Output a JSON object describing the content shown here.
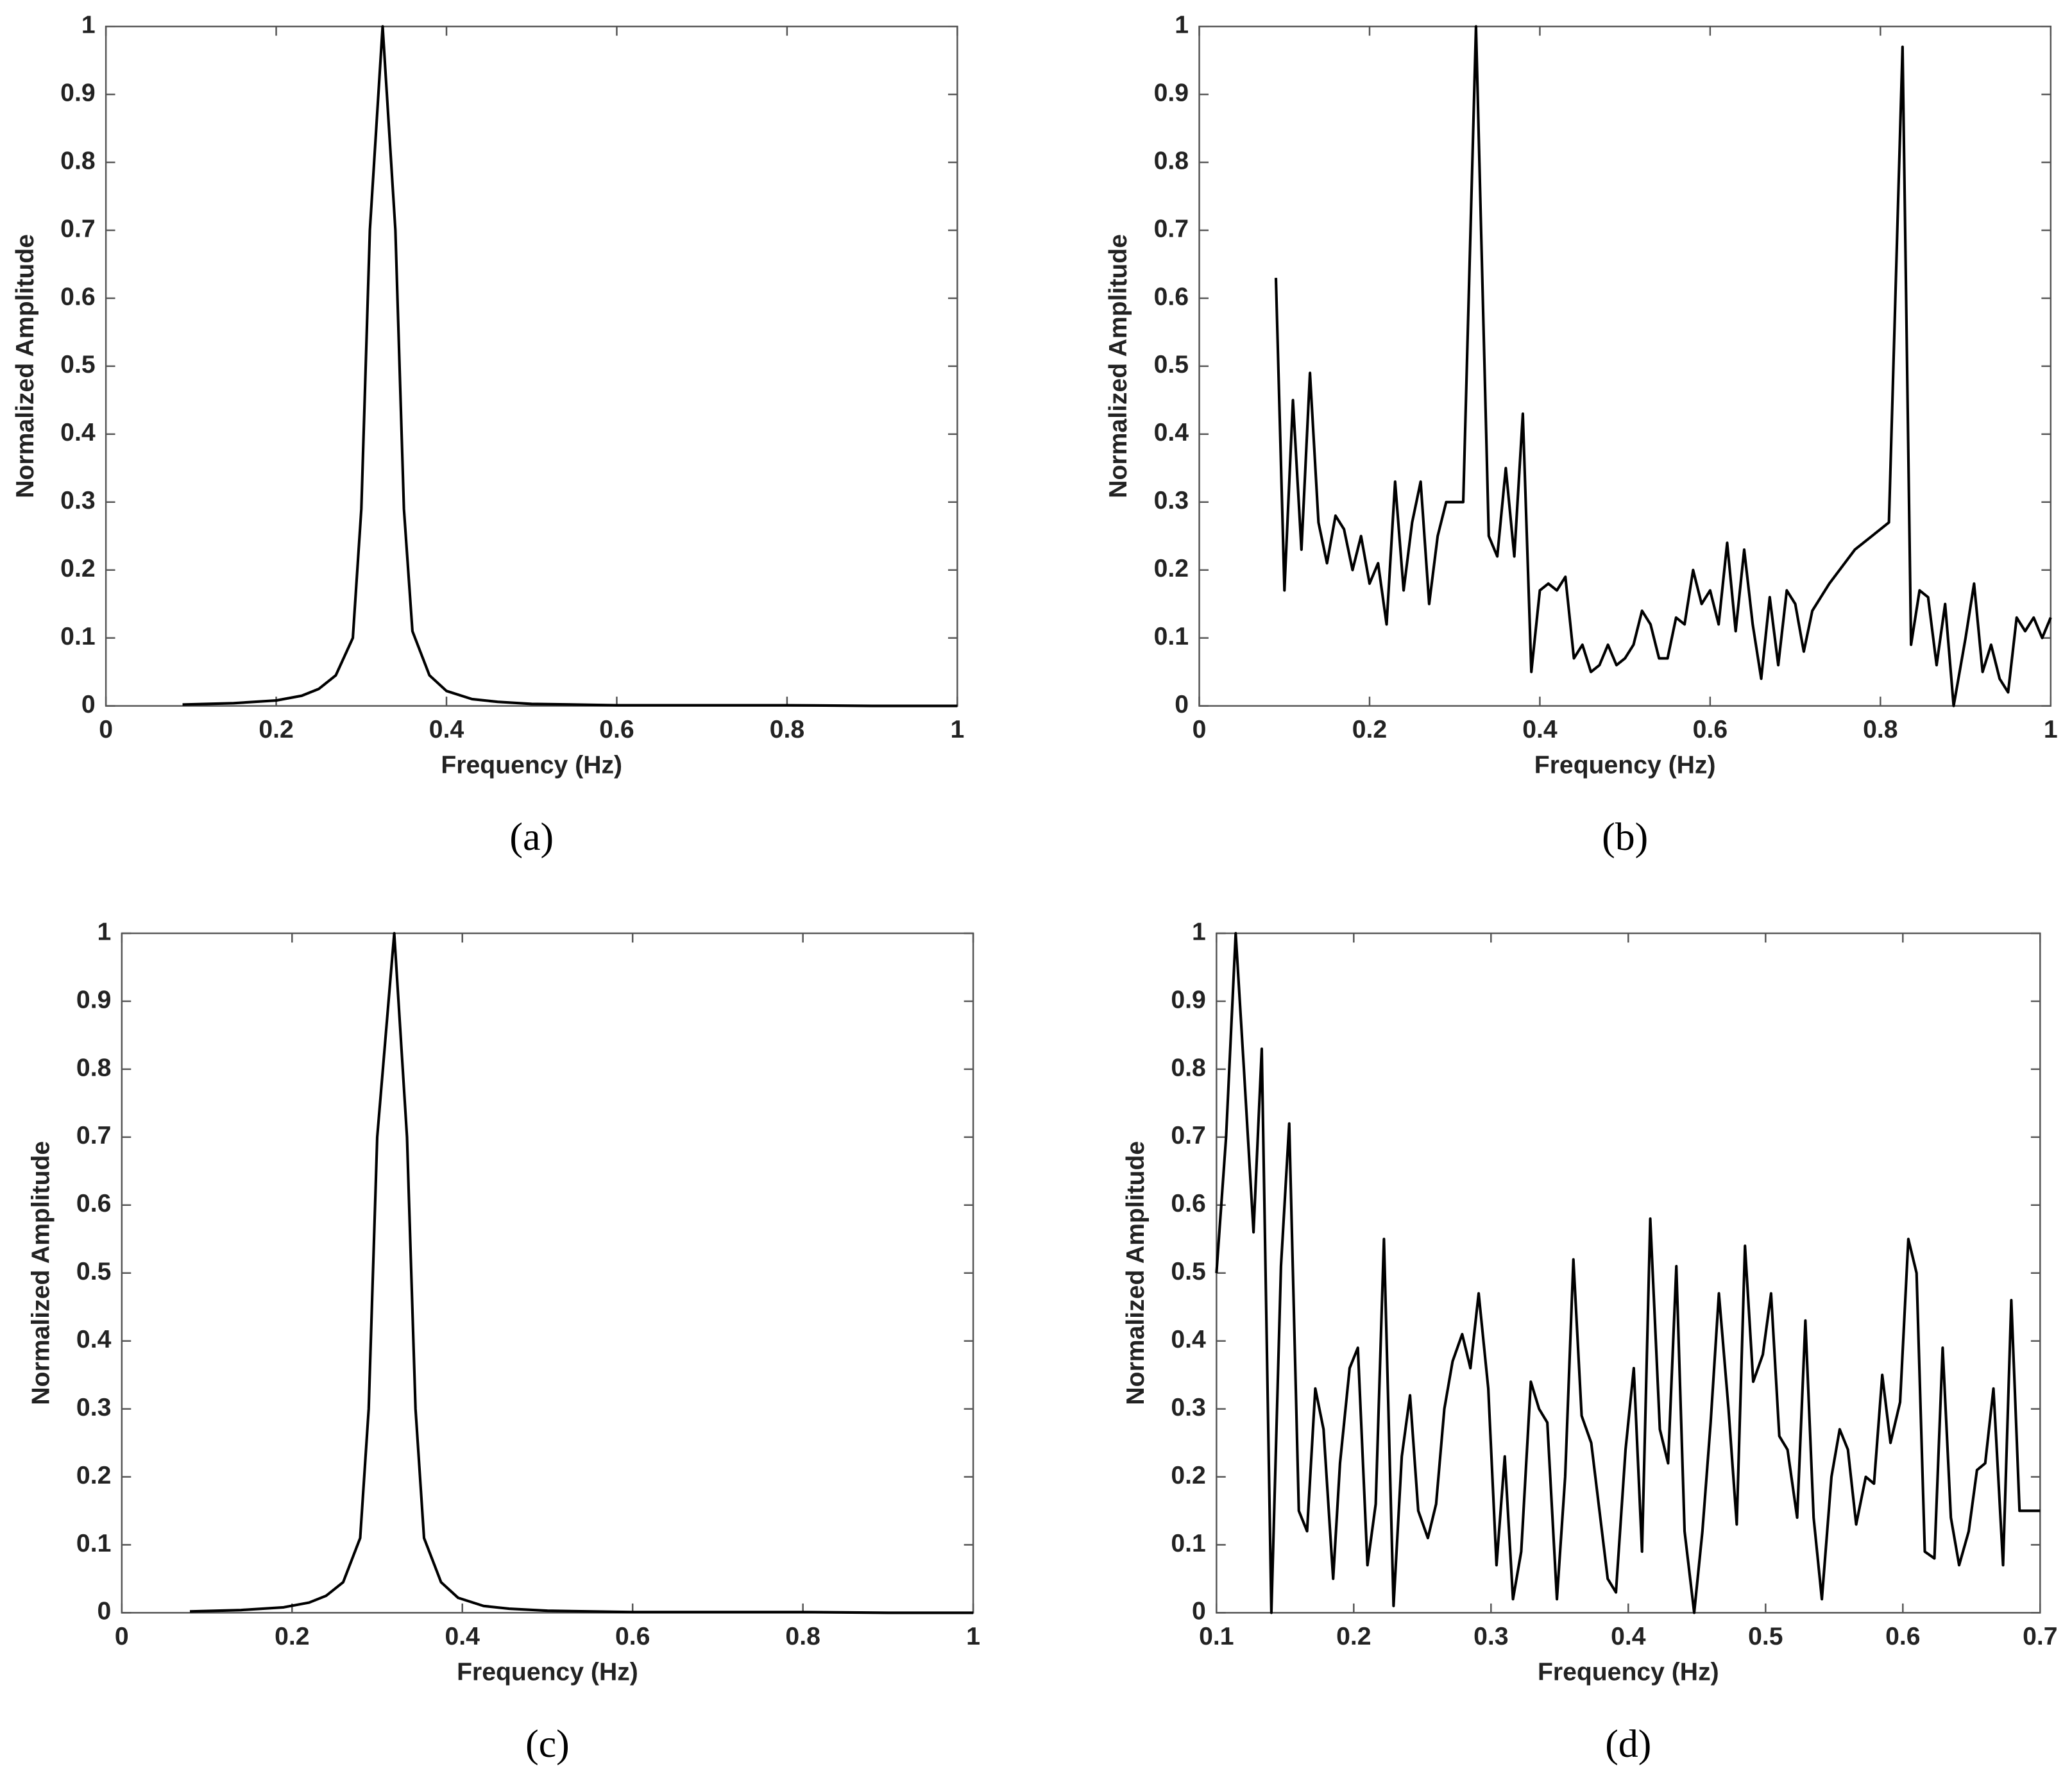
{
  "chart_data": [
    {
      "type": "line",
      "caption": "(a)",
      "xlabel": "Frequency (Hz)",
      "ylabel": "Normalized Amplitude",
      "color": "#000000",
      "x": [
        0.09,
        0.15,
        0.2,
        0.23,
        0.25,
        0.27,
        0.29,
        0.3,
        0.31,
        0.325,
        0.34,
        0.35,
        0.36,
        0.38,
        0.4,
        0.43,
        0.46,
        0.5,
        0.6,
        0.7,
        0.8,
        0.9,
        1.0
      ],
      "values": [
        0.002,
        0.004,
        0.008,
        0.015,
        0.025,
        0.045,
        0.1,
        0.29,
        0.7,
        1,
        0.7,
        0.29,
        0.11,
        0.045,
        0.022,
        0.01,
        0.006,
        0.003,
        0.001,
        0.001,
        0.001,
        0,
        0
      ],
      "xlim": [
        0,
        1
      ],
      "ylim": [
        0,
        1
      ],
      "xticks": [
        0,
        0.2,
        0.4,
        0.6,
        0.8,
        1
      ],
      "yticks": [
        0,
        0.1,
        0.2,
        0.3,
        0.4,
        0.5,
        0.6,
        0.7,
        0.8,
        0.9,
        1
      ]
    },
    {
      "type": "line",
      "caption": "(b)",
      "xlabel": "Frequency (Hz)",
      "ylabel": "Normalized Amplitude",
      "color": "#000000",
      "x": [
        0.09,
        0.1,
        0.11,
        0.12,
        0.13,
        0.14,
        0.15,
        0.16,
        0.17,
        0.18,
        0.19,
        0.2,
        0.21,
        0.22,
        0.23,
        0.24,
        0.25,
        0.26,
        0.27,
        0.28,
        0.29,
        0.31,
        0.325,
        0.34,
        0.35,
        0.36,
        0.37,
        0.38,
        0.39,
        0.4,
        0.41,
        0.42,
        0.43,
        0.44,
        0.45,
        0.46,
        0.47,
        0.48,
        0.49,
        0.5,
        0.51,
        0.52,
        0.53,
        0.54,
        0.55,
        0.56,
        0.57,
        0.58,
        0.59,
        0.6,
        0.61,
        0.62,
        0.63,
        0.64,
        0.65,
        0.66,
        0.67,
        0.68,
        0.69,
        0.7,
        0.71,
        0.72,
        0.74,
        0.77,
        0.81,
        0.826,
        0.836,
        0.846,
        0.856,
        0.866,
        0.876,
        0.886,
        0.9,
        0.91,
        0.92,
        0.93,
        0.94,
        0.95,
        0.96,
        0.97,
        0.98,
        0.99,
        1
      ],
      "values": [
        0.63,
        0.17,
        0.45,
        0.23,
        0.49,
        0.27,
        0.21,
        0.28,
        0.26,
        0.2,
        0.25,
        0.18,
        0.21,
        0.12,
        0.33,
        0.17,
        0.27,
        0.33,
        0.15,
        0.25,
        0.3,
        0.3,
        1,
        0.25,
        0.22,
        0.35,
        0.22,
        0.43,
        0.05,
        0.17,
        0.18,
        0.17,
        0.19,
        0.07,
        0.09,
        0.05,
        0.06,
        0.09,
        0.06,
        0.07,
        0.09,
        0.14,
        0.12,
        0.07,
        0.07,
        0.13,
        0.12,
        0.2,
        0.15,
        0.17,
        0.12,
        0.24,
        0.11,
        0.23,
        0.12,
        0.04,
        0.16,
        0.06,
        0.17,
        0.15,
        0.08,
        0.14,
        0.18,
        0.23,
        0.27,
        0.97,
        0.09,
        0.17,
        0.16,
        0.06,
        0.15,
        0,
        0.1,
        0.18,
        0.05,
        0.09,
        0.04,
        0.02,
        0.13,
        0.11,
        0.13,
        0.1,
        0.13
      ],
      "xlim": [
        0,
        1
      ],
      "ylim": [
        0,
        1
      ],
      "xticks": [
        0,
        0.2,
        0.4,
        0.6,
        0.8,
        1
      ],
      "yticks": [
        0,
        0.1,
        0.2,
        0.3,
        0.4,
        0.5,
        0.6,
        0.7,
        0.8,
        0.9,
        1
      ]
    },
    {
      "type": "line",
      "caption": "(c)",
      "xlabel": "Frequency (Hz)",
      "ylabel": "Normalized Amplitude",
      "color": "#000000",
      "x": [
        0.08,
        0.14,
        0.19,
        0.22,
        0.24,
        0.26,
        0.28,
        0.29,
        0.3,
        0.32,
        0.335,
        0.345,
        0.355,
        0.375,
        0.395,
        0.425,
        0.455,
        0.5,
        0.6,
        0.7,
        0.8,
        0.9,
        1.0
      ],
      "values": [
        0.002,
        0.004,
        0.008,
        0.015,
        0.025,
        0.045,
        0.11,
        0.3,
        0.7,
        1,
        0.7,
        0.3,
        0.11,
        0.045,
        0.022,
        0.01,
        0.006,
        0.003,
        0.001,
        0.001,
        0.001,
        0,
        0
      ],
      "xlim": [
        0,
        1
      ],
      "ylim": [
        0,
        1
      ],
      "xticks": [
        0,
        0.2,
        0.4,
        0.6,
        0.8,
        1
      ],
      "yticks": [
        0,
        0.1,
        0.2,
        0.3,
        0.4,
        0.5,
        0.6,
        0.7,
        0.8,
        0.9,
        1
      ]
    },
    {
      "type": "line",
      "caption": "(d)",
      "xlabel": "Frequency (Hz)",
      "ylabel": "Normalized Amplitude",
      "color": "#000000",
      "x": [
        0.1,
        0.107,
        0.114,
        0.12,
        0.127,
        0.133,
        0.14,
        0.147,
        0.153,
        0.16,
        0.166,
        0.172,
        0.178,
        0.185,
        0.19,
        0.197,
        0.203,
        0.21,
        0.216,
        0.222,
        0.229,
        0.235,
        0.241,
        0.247,
        0.254,
        0.26,
        0.266,
        0.272,
        0.279,
        0.285,
        0.291,
        0.298,
        0.304,
        0.31,
        0.316,
        0.322,
        0.329,
        0.335,
        0.341,
        0.348,
        0.354,
        0.36,
        0.366,
        0.373,
        0.379,
        0.385,
        0.391,
        0.398,
        0.404,
        0.41,
        0.416,
        0.423,
        0.429,
        0.435,
        0.441,
        0.448,
        0.454,
        0.46,
        0.466,
        0.473,
        0.479,
        0.485,
        0.491,
        0.498,
        0.504,
        0.51,
        0.516,
        0.523,
        0.529,
        0.535,
        0.541,
        0.548,
        0.554,
        0.56,
        0.566,
        0.573,
        0.579,
        0.585,
        0.591,
        0.598,
        0.604,
        0.61,
        0.616,
        0.623,
        0.629,
        0.635,
        0.641,
        0.648,
        0.654,
        0.66,
        0.666,
        0.673,
        0.679,
        0.685,
        0.7
      ],
      "values": [
        0.5,
        0.7,
        1,
        0.8,
        0.56,
        0.83,
        0,
        0.51,
        0.72,
        0.15,
        0.12,
        0.33,
        0.27,
        0.05,
        0.22,
        0.36,
        0.39,
        0.07,
        0.16,
        0.55,
        0.01,
        0.23,
        0.32,
        0.15,
        0.11,
        0.16,
        0.3,
        0.37,
        0.41,
        0.36,
        0.47,
        0.33,
        0.07,
        0.23,
        0.02,
        0.09,
        0.34,
        0.3,
        0.28,
        0.02,
        0.2,
        0.52,
        0.29,
        0.25,
        0.15,
        0.05,
        0.03,
        0.24,
        0.36,
        0.09,
        0.58,
        0.27,
        0.22,
        0.51,
        0.12,
        0,
        0.12,
        0.28,
        0.47,
        0.3,
        0.13,
        0.54,
        0.34,
        0.38,
        0.47,
        0.26,
        0.24,
        0.14,
        0.43,
        0.14,
        0.02,
        0.2,
        0.27,
        0.24,
        0.13,
        0.2,
        0.19,
        0.35,
        0.25,
        0.31,
        0.55,
        0.5,
        0.09,
        0.08,
        0.39,
        0.14,
        0.07,
        0.12,
        0.21,
        0.22,
        0.33,
        0.07,
        0.46,
        0.15,
        0.15
      ],
      "xlim": [
        0.1,
        0.7
      ],
      "ylim": [
        0,
        1
      ],
      "xticks": [
        0.1,
        0.2,
        0.3,
        0.4,
        0.5,
        0.6,
        0.7
      ],
      "yticks": [
        0,
        0.1,
        0.2,
        0.3,
        0.4,
        0.5,
        0.6,
        0.7,
        0.8,
        0.9,
        1
      ]
    }
  ]
}
